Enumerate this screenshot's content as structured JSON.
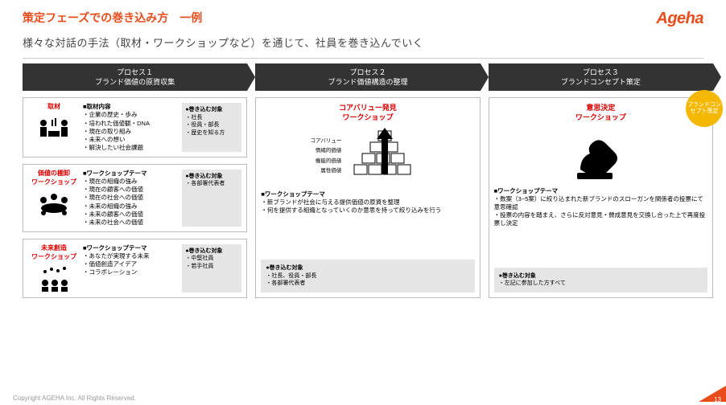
{
  "colors": {
    "accent": "#e84c1a",
    "dark": "#333333",
    "red": "#d80000",
    "badge": "#f5b800",
    "gray_box": "#e5e5e5",
    "border": "#bbbbbb"
  },
  "header": {
    "title": "策定フェーズでの巻き込み方　一例",
    "logo": "Ageha"
  },
  "subtitle": "様々な対話の手法（取材・ワークショップなど）を通じて、社員を巻き込んでいく",
  "badge": "ブランドコンセプト策定",
  "process1": {
    "num": "プロセス１",
    "name": "ブランド価値の原資収集",
    "rows": [
      {
        "label": "取材",
        "mid_h": "■取材内容",
        "mid_items": [
          "企業の歴史・歩み",
          "培われた価値観・DNA",
          "現在の取り組み",
          "未来への想い",
          "解決したい社会課題"
        ],
        "right_h": "●巻き込む対象",
        "right_items": [
          "社長",
          "役員・部長",
          "歴史を知る方"
        ],
        "icon": "interview"
      },
      {
        "label": "価値の棚卸\nワークショップ",
        "mid_h": "■ワークショップテーマ",
        "mid_items": [
          "現在の組織の強み",
          "現在の顧客への価値",
          "現在の社会への価値",
          "未来の組織の強み",
          "未来の顧客への価値",
          "未来の社会への価値"
        ],
        "right_h": "●巻き込む対象",
        "right_items": [
          "各部署代表者"
        ],
        "icon": "meeting"
      },
      {
        "label": "未来創造\nワークショップ",
        "mid_h": "■ワークショップテーマ",
        "mid_items": [
          "あなたが実現する未来",
          "価値創造アイデア",
          "コラボレーション"
        ],
        "right_h": "●巻き込む対象",
        "right_items": [
          "中堅社員",
          "若手社員"
        ],
        "icon": "future"
      }
    ]
  },
  "process2": {
    "num": "プロセス２",
    "name": "ブランド価値構造の整理",
    "ws_title": "コアバリュー発見\nワークショップ",
    "pyramid_labels": [
      "コアバリュー",
      "情緒的価値",
      "機能的価値",
      "属性価値"
    ],
    "body_h": "■ワークショップテーマ",
    "body_items": [
      "新ブランドが社会に与える提供価値の原資を整理",
      "何を提供する組織となっていくのか意思を持って絞り込みを行う"
    ],
    "gray_h": "●巻き込む対象",
    "gray_items": [
      "社長、役員・部長",
      "各部署代表者"
    ]
  },
  "process3": {
    "num": "プロセス３",
    "name": "ブランドコンセプト策定",
    "ws_title": "意思決定\nワークショップ",
    "body_h": "■ワークショップテーマ",
    "body_items": [
      "数案（3~5案）に絞り込まれた新ブランドのスローガンを関係者の投票にて意思確認",
      "投票の内容を踏まえ、さらに反対意見・賛成意見を交換し合った上で再度投票し決定"
    ],
    "gray_h": "●巻き込む対象",
    "gray_items": [
      "左記に参加した方すべて"
    ]
  },
  "footer": {
    "copyright": "Copyright AGEHA Inc. All Rights Reserved.",
    "page": "13"
  }
}
